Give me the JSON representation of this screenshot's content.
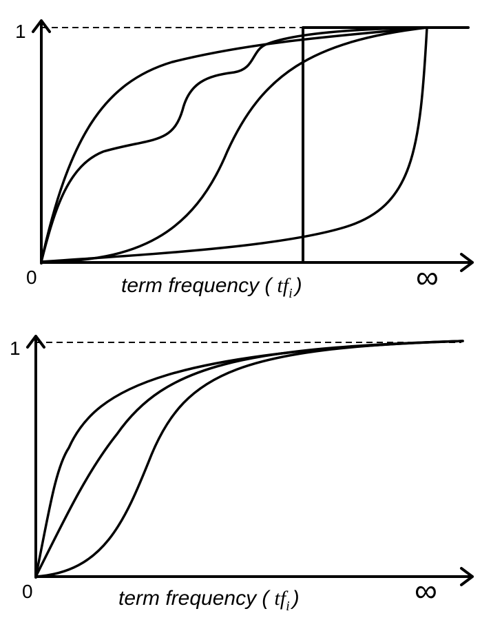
{
  "panels": [
    {
      "y_top_label": "1",
      "origin_label": "0",
      "x_label": {
        "text": "term frequency (",
        "variable": "tf",
        "subscript": "i",
        "close": ")"
      },
      "x_end_label": "∞"
    },
    {
      "y_top_label": "1",
      "origin_label": "0",
      "x_label": {
        "text": "term frequency (",
        "variable": "tf",
        "subscript": "i",
        "close": ")"
      },
      "x_end_label": "∞"
    }
  ]
}
